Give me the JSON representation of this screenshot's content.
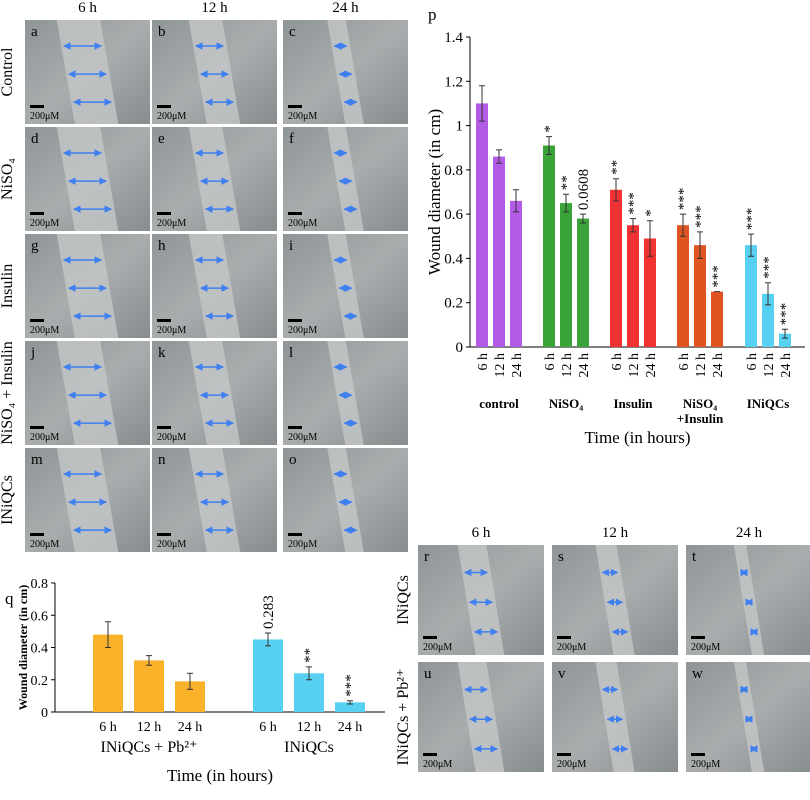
{
  "figure": {
    "grid_1": {
      "columns": [
        "6 h",
        "12 h",
        "24 h"
      ],
      "rows": [
        "Control",
        "NiSO₄",
        "Insulin",
        "NiSO₄ + Insulin",
        "INiQCs"
      ],
      "panels": [
        "a",
        "b",
        "c",
        "d",
        "e",
        "f",
        "g",
        "h",
        "i",
        "j",
        "k",
        "l",
        "m",
        "n",
        "o"
      ],
      "scale_bar": "200μM"
    },
    "grid_2": {
      "columns": [
        "6 h",
        "12 h",
        "24 h"
      ],
      "rows": [
        "INiQCs",
        "INiQCs + Pb²⁺"
      ],
      "panels": [
        "r",
        "s",
        "t",
        "u",
        "v",
        "w"
      ],
      "scale_bar": "200μM"
    }
  },
  "chart_data": [
    {
      "type": "bar",
      "title": "p",
      "ylabel": "Wound diameter (in cm)",
      "xlabel": "Time (in hours)",
      "ylim": [
        0,
        1.4
      ],
      "yticks": [
        0,
        0.2,
        0.4,
        0.6,
        0.8,
        1,
        1.2,
        1.4
      ],
      "groups": [
        {
          "name": "control",
          "color": "#b15be6",
          "categories": [
            "6 h",
            "12 h",
            "24 h"
          ],
          "values": [
            1.1,
            0.86,
            0.66
          ],
          "errors": [
            0.08,
            0.03,
            0.05
          ],
          "annotations": [
            null,
            null,
            null
          ]
        },
        {
          "name": "NiSO₄",
          "color": "#3aa33a",
          "categories": [
            "6 h",
            "12 h",
            "24 h"
          ],
          "values": [
            0.91,
            0.65,
            0.58
          ],
          "errors": [
            0.04,
            0.04,
            0.02
          ],
          "annotations": [
            "*",
            "**",
            "0.0608"
          ]
        },
        {
          "name": "Insulin",
          "color": "#f03232",
          "categories": [
            "6 h",
            "12 h",
            "24 h"
          ],
          "values": [
            0.71,
            0.55,
            0.49
          ],
          "errors": [
            0.05,
            0.03,
            0.08
          ],
          "annotations": [
            "**",
            "***",
            "*"
          ]
        },
        {
          "name": "NiSO₄ +Insulin",
          "color": "#df5420",
          "categories": [
            "6 h",
            "12 h",
            "24 h"
          ],
          "values": [
            0.55,
            0.46,
            0.25
          ],
          "errors": [
            0.05,
            0.06,
            0
          ],
          "annotations": [
            "***",
            "***",
            "***"
          ]
        },
        {
          "name": "INiQCs",
          "color": "#57d0f2",
          "categories": [
            "6 h",
            "12 h",
            "24 h"
          ],
          "values": [
            0.46,
            0.24,
            0.06
          ],
          "errors": [
            0.05,
            0.05,
            0.02
          ],
          "annotations": [
            "***",
            "***",
            "***"
          ]
        }
      ]
    },
    {
      "type": "bar",
      "title": "q",
      "ylabel": "Wound diameter (in cm)",
      "xlabel": "Time (in hours)",
      "ylim": [
        0,
        0.8
      ],
      "yticks": [
        0,
        0.2,
        0.4,
        0.6,
        0.8
      ],
      "groups": [
        {
          "name": "INiQCs + Pb²⁺",
          "color": "#f9b22a",
          "categories": [
            "6 h",
            "12 h",
            "24 h"
          ],
          "values": [
            0.48,
            0.32,
            0.19
          ],
          "errors": [
            0.08,
            0.03,
            0.05
          ],
          "annotations": [
            null,
            null,
            null
          ]
        },
        {
          "name": "INiQCs",
          "color": "#57d0f2",
          "categories": [
            "6 h",
            "12 h",
            "24 h"
          ],
          "values": [
            0.45,
            0.24,
            0.06
          ],
          "errors": [
            0.04,
            0.04,
            0.01
          ],
          "annotations": [
            "0.283",
            "**",
            "***"
          ]
        }
      ]
    }
  ]
}
